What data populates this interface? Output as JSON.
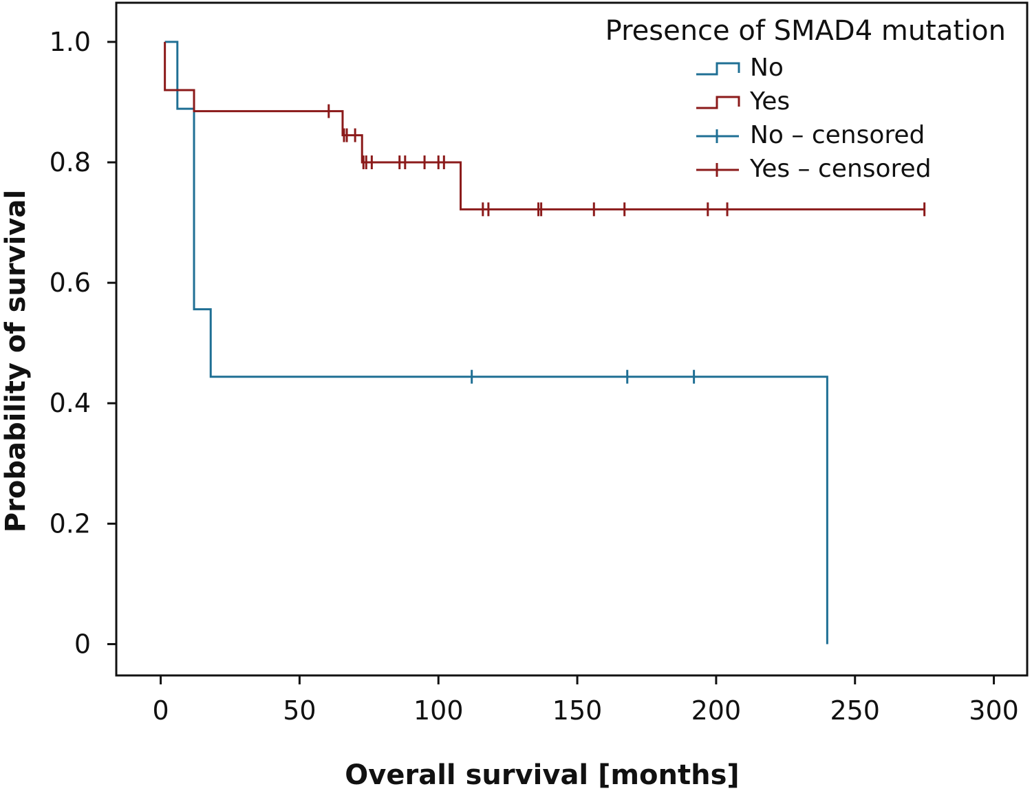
{
  "chart_data": {
    "type": "line",
    "subtype": "kaplan-meier",
    "title": "",
    "xlabel": "Overall survival [months]",
    "ylabel": "Probability of survival",
    "xlim": [
      -16,
      312
    ],
    "ylim": [
      -0.052,
      1.065
    ],
    "xticks": [
      0,
      50,
      100,
      150,
      200,
      250,
      300
    ],
    "xtick_labels": [
      "0",
      "50",
      "100",
      "150",
      "200",
      "250",
      "300"
    ],
    "yticks": [
      0,
      0.2,
      0.4,
      0.6,
      0.8,
      1.0
    ],
    "ytick_labels": [
      "0",
      "0.2",
      "0.4",
      "0.6",
      "0.8",
      "1.0"
    ],
    "grid": false,
    "legend": {
      "title": "Presence of SMAD4 mutation",
      "position": "top-right",
      "entries": [
        "No",
        "Yes",
        "No – censored",
        "Yes – censored"
      ]
    },
    "series": [
      {
        "name": "No",
        "color": "#1f6f94",
        "steps": [
          [
            1.5,
            1.0
          ],
          [
            6,
            0.889
          ],
          [
            12,
            0.556
          ],
          [
            18,
            0.444
          ],
          [
            240,
            0.0
          ]
        ],
        "end_x": 240,
        "censored_name": "No – censored",
        "censored": [
          112,
          168,
          192
        ]
      },
      {
        "name": "Yes",
        "color": "#8b1a1a",
        "steps": [
          [
            1.5,
            0.92
          ],
          [
            12,
            0.885
          ],
          [
            65.5,
            0.845
          ],
          [
            72.5,
            0.8
          ],
          [
            108,
            0.722
          ]
        ],
        "end_x": 275,
        "censored_name": "Yes – censored",
        "censored": [
          60.5,
          66,
          67,
          70,
          73,
          74,
          76,
          86,
          88,
          95,
          100,
          102,
          116,
          118,
          136,
          137,
          156,
          167,
          197,
          204,
          275
        ]
      }
    ]
  }
}
